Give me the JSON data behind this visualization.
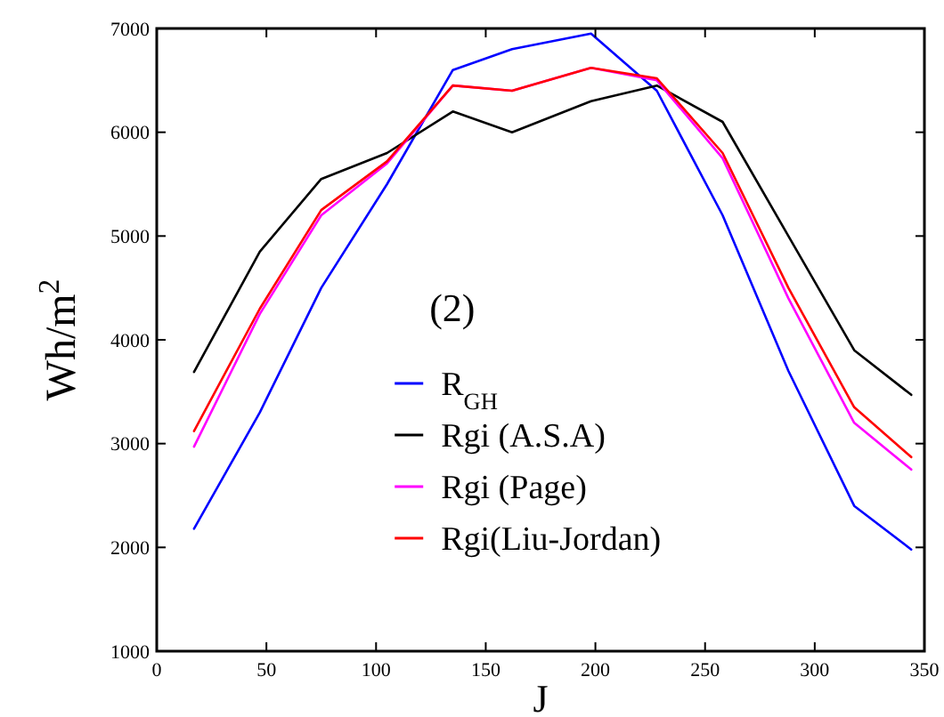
{
  "chart_data": {
    "type": "line",
    "xlabel": "J",
    "ylabel": "Wh/m$^{2}$",
    "annotations": [
      "(2)"
    ],
    "x": [
      17,
      47,
      75,
      105,
      135,
      162,
      198,
      228,
      258,
      288,
      318,
      344
    ],
    "xlim": [
      0,
      350
    ],
    "xticks": [
      0,
      50,
      100,
      150,
      200,
      250,
      300,
      350
    ],
    "ylim": [
      1000,
      7000
    ],
    "yticks": [
      1000,
      2000,
      3000,
      4000,
      5000,
      6000,
      7000
    ],
    "grid": false,
    "legend": "bottom",
    "line_style": "solid",
    "series": [
      {
        "name": "R$_{GH}$",
        "color": "#0000ff",
        "values": [
          2180,
          3300,
          4500,
          5500,
          6600,
          6800,
          6950,
          6400,
          5200,
          3700,
          2400,
          1980
        ]
      },
      {
        "name": "Rgi (A.S.A)",
        "color": "#000000",
        "values": [
          3690,
          4850,
          5550,
          5800,
          6200,
          6000,
          6300,
          6450,
          6100,
          5000,
          3900,
          3470
        ]
      },
      {
        "name": "Rgi (Page)",
        "color": "#ff00ff",
        "values": [
          2970,
          4250,
          5200,
          5700,
          6450,
          6400,
          6620,
          6500,
          5750,
          4400,
          3200,
          2750
        ]
      },
      {
        "name": "Rgi(Liu-Jordan)",
        "color": "#ff0000",
        "values": [
          3120,
          4300,
          5250,
          5720,
          6450,
          6400,
          6620,
          6520,
          5800,
          4500,
          3350,
          2870
        ]
      }
    ]
  }
}
